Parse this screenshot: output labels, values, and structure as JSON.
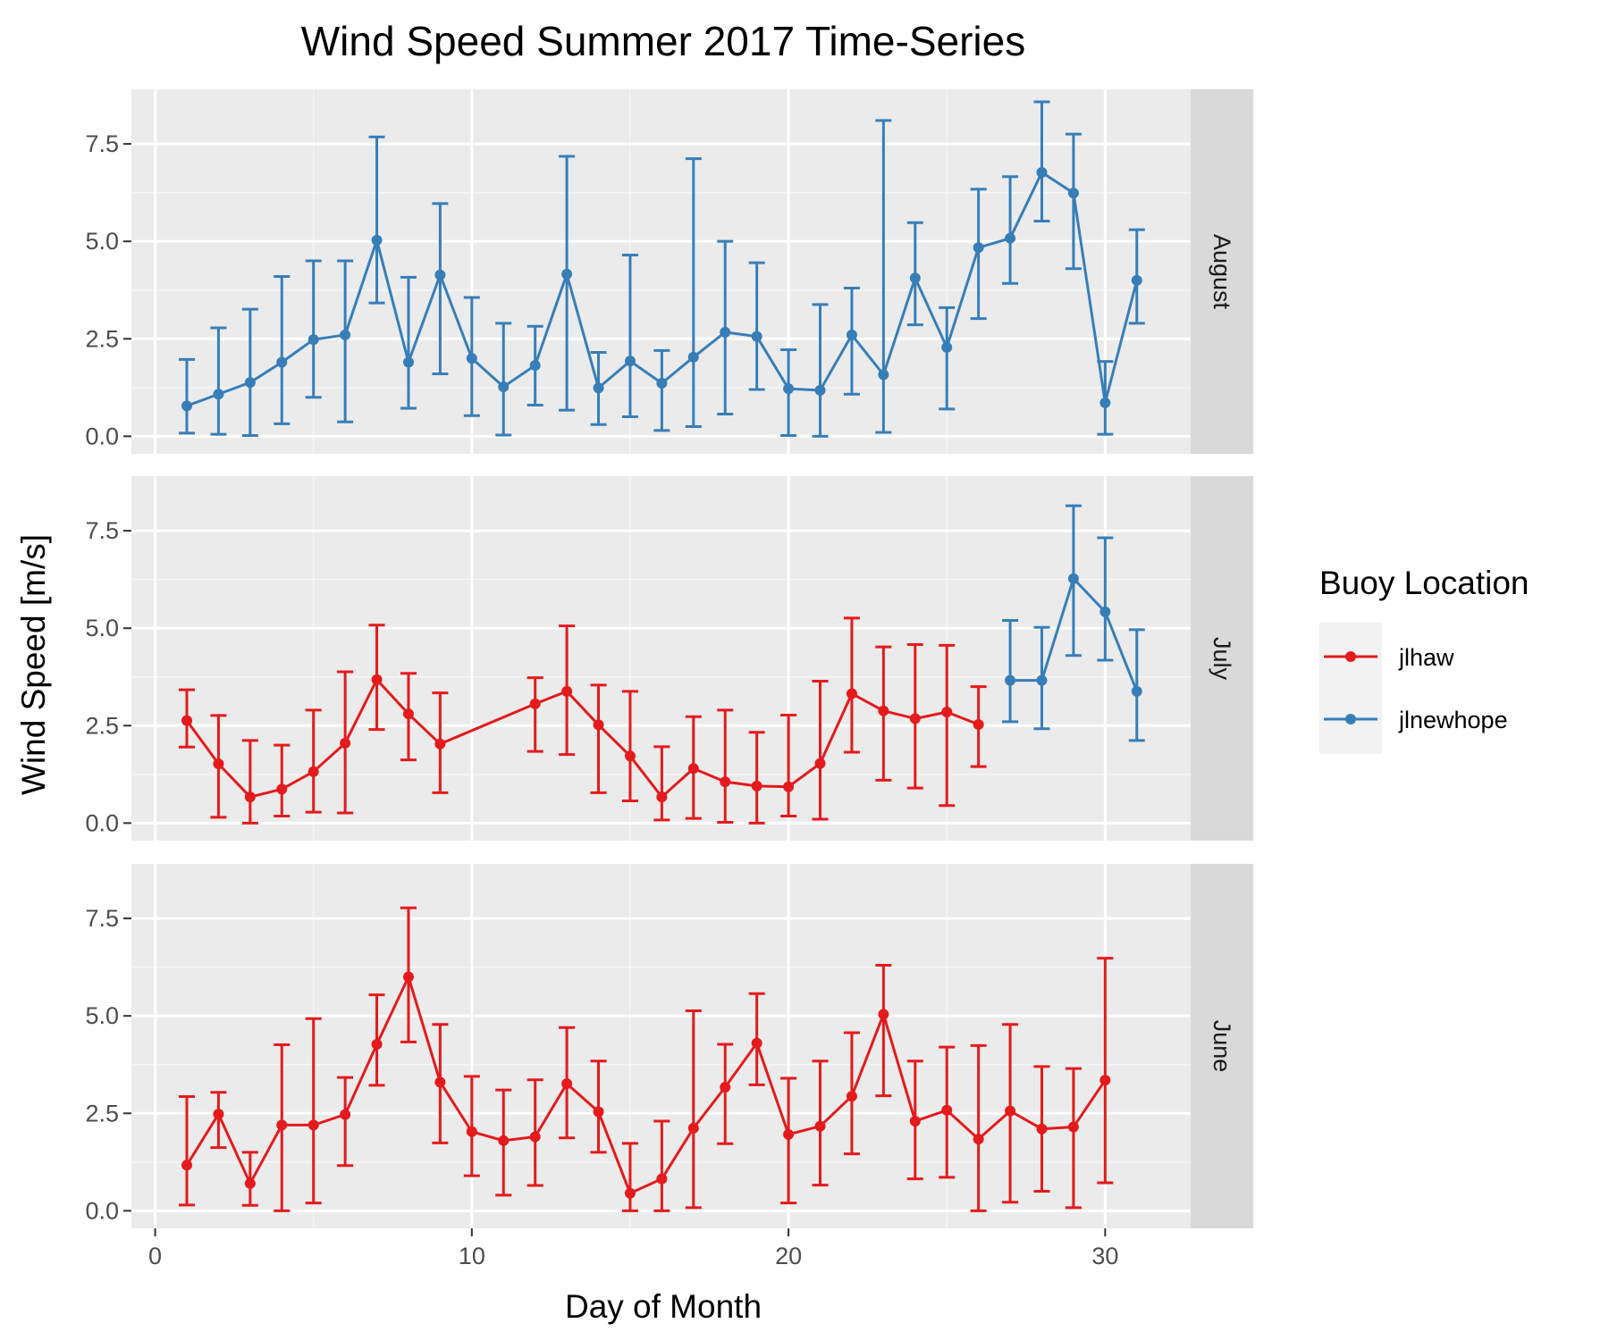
{
  "chart_data": {
    "type": "line",
    "title": "Wind Speed Summer 2017 Time-Series",
    "xlabel": "Day of Month",
    "ylabel": "Wind Speed [m/s]",
    "xlim": [
      -0.75,
      32.7
    ],
    "ylim": [
      -0.45,
      8.9
    ],
    "x_ticks": [
      0,
      10,
      20,
      30
    ],
    "x_tick_labels": [
      "0",
      "10",
      "20",
      "30"
    ],
    "y_ticks": [
      0,
      2.5,
      5,
      7.5
    ],
    "y_tick_labels": [
      "0.0",
      "2.5",
      "5.0",
      "7.5"
    ],
    "grid": true,
    "legend": {
      "title": "Buoy Location",
      "position": "right",
      "entries": [
        {
          "name": "jlhaw",
          "color": "#e41a1c"
        },
        {
          "name": "jlnewhope",
          "color": "#377eb8"
        }
      ]
    },
    "panels": [
      {
        "label": "August",
        "series": [
          {
            "name": "jlnewhope",
            "color": "#377eb8",
            "points": [
              {
                "x": 1,
                "y": 0.78,
                "lo": 0.08,
                "hi": 1.97
              },
              {
                "x": 2,
                "y": 1.08,
                "lo": 0.05,
                "hi": 2.78
              },
              {
                "x": 3,
                "y": 1.38,
                "lo": 0.02,
                "hi": 3.26
              },
              {
                "x": 4,
                "y": 1.9,
                "lo": 0.32,
                "hi": 4.1
              },
              {
                "x": 5,
                "y": 2.48,
                "lo": 1.0,
                "hi": 4.5
              },
              {
                "x": 6,
                "y": 2.6,
                "lo": 0.37,
                "hi": 4.5
              },
              {
                "x": 7,
                "y": 5.03,
                "lo": 3.42,
                "hi": 7.68
              },
              {
                "x": 8,
                "y": 1.9,
                "lo": 0.72,
                "hi": 4.08
              },
              {
                "x": 9,
                "y": 4.14,
                "lo": 1.6,
                "hi": 5.97
              },
              {
                "x": 10,
                "y": 2.0,
                "lo": 0.53,
                "hi": 3.56
              },
              {
                "x": 11,
                "y": 1.27,
                "lo": 0.03,
                "hi": 2.9
              },
              {
                "x": 12,
                "y": 1.82,
                "lo": 0.8,
                "hi": 2.82
              },
              {
                "x": 13,
                "y": 4.16,
                "lo": 0.67,
                "hi": 7.18
              },
              {
                "x": 14,
                "y": 1.24,
                "lo": 0.3,
                "hi": 2.15
              },
              {
                "x": 15,
                "y": 1.93,
                "lo": 0.5,
                "hi": 4.65
              },
              {
                "x": 16,
                "y": 1.36,
                "lo": 0.15,
                "hi": 2.2
              },
              {
                "x": 17,
                "y": 2.03,
                "lo": 0.25,
                "hi": 7.12
              },
              {
                "x": 18,
                "y": 2.67,
                "lo": 0.57,
                "hi": 5.0
              },
              {
                "x": 19,
                "y": 2.56,
                "lo": 1.2,
                "hi": 4.45
              },
              {
                "x": 20,
                "y": 1.22,
                "lo": 0.02,
                "hi": 2.22
              },
              {
                "x": 21,
                "y": 1.18,
                "lo": 0.0,
                "hi": 3.38
              },
              {
                "x": 22,
                "y": 2.6,
                "lo": 1.08,
                "hi": 3.8
              },
              {
                "x": 23,
                "y": 1.58,
                "lo": 0.1,
                "hi": 8.1
              },
              {
                "x": 24,
                "y": 4.06,
                "lo": 2.86,
                "hi": 5.48
              },
              {
                "x": 25,
                "y": 2.28,
                "lo": 0.7,
                "hi": 3.3
              },
              {
                "x": 26,
                "y": 4.84,
                "lo": 3.02,
                "hi": 6.34
              },
              {
                "x": 27,
                "y": 5.08,
                "lo": 3.92,
                "hi": 6.66
              },
              {
                "x": 28,
                "y": 6.77,
                "lo": 5.52,
                "hi": 8.58
              },
              {
                "x": 29,
                "y": 6.24,
                "lo": 4.3,
                "hi": 7.75
              },
              {
                "x": 30,
                "y": 0.86,
                "lo": 0.05,
                "hi": 1.92
              },
              {
                "x": 31,
                "y": 4.0,
                "lo": 2.9,
                "hi": 5.3
              }
            ]
          }
        ]
      },
      {
        "label": "July",
        "series": [
          {
            "name": "jlhaw",
            "color": "#e41a1c",
            "points": [
              {
                "x": 1,
                "y": 2.63,
                "lo": 1.95,
                "hi": 3.42
              },
              {
                "x": 2,
                "y": 1.52,
                "lo": 0.15,
                "hi": 2.76
              },
              {
                "x": 3,
                "y": 0.67,
                "lo": 0.0,
                "hi": 2.12
              },
              {
                "x": 4,
                "y": 0.87,
                "lo": 0.18,
                "hi": 2.0
              },
              {
                "x": 5,
                "y": 1.32,
                "lo": 0.28,
                "hi": 2.9
              },
              {
                "x": 6,
                "y": 2.05,
                "lo": 0.26,
                "hi": 3.88
              },
              {
                "x": 7,
                "y": 3.68,
                "lo": 2.4,
                "hi": 5.08
              },
              {
                "x": 8,
                "y": 2.8,
                "lo": 1.62,
                "hi": 3.84
              },
              {
                "x": 9,
                "y": 2.03,
                "lo": 0.78,
                "hi": 3.34
              },
              {
                "x": 12,
                "y": 3.06,
                "lo": 1.84,
                "hi": 3.73
              },
              {
                "x": 13,
                "y": 3.38,
                "lo": 1.76,
                "hi": 5.06
              },
              {
                "x": 14,
                "y": 2.52,
                "lo": 0.78,
                "hi": 3.54
              },
              {
                "x": 15,
                "y": 1.72,
                "lo": 0.57,
                "hi": 3.38
              },
              {
                "x": 16,
                "y": 0.67,
                "lo": 0.08,
                "hi": 1.96
              },
              {
                "x": 17,
                "y": 1.4,
                "lo": 0.12,
                "hi": 2.73
              },
              {
                "x": 18,
                "y": 1.06,
                "lo": 0.02,
                "hi": 2.9
              },
              {
                "x": 19,
                "y": 0.95,
                "lo": 0.0,
                "hi": 2.33
              },
              {
                "x": 20,
                "y": 0.93,
                "lo": 0.18,
                "hi": 2.77
              },
              {
                "x": 21,
                "y": 1.53,
                "lo": 0.1,
                "hi": 3.64
              },
              {
                "x": 22,
                "y": 3.32,
                "lo": 1.82,
                "hi": 5.26
              },
              {
                "x": 23,
                "y": 2.88,
                "lo": 1.1,
                "hi": 4.52
              },
              {
                "x": 24,
                "y": 2.68,
                "lo": 0.9,
                "hi": 4.58
              },
              {
                "x": 25,
                "y": 2.85,
                "lo": 0.45,
                "hi": 4.56
              },
              {
                "x": 26,
                "y": 2.53,
                "lo": 1.45,
                "hi": 3.5
              }
            ]
          },
          {
            "name": "jlnewhope",
            "color": "#377eb8",
            "points": [
              {
                "x": 27,
                "y": 3.66,
                "lo": 2.6,
                "hi": 5.2
              },
              {
                "x": 28,
                "y": 3.66,
                "lo": 2.42,
                "hi": 5.02
              },
              {
                "x": 29,
                "y": 6.27,
                "lo": 4.3,
                "hi": 8.14
              },
              {
                "x": 30,
                "y": 5.42,
                "lo": 4.18,
                "hi": 7.32
              },
              {
                "x": 31,
                "y": 3.38,
                "lo": 2.12,
                "hi": 4.96
              }
            ]
          }
        ]
      },
      {
        "label": "June",
        "series": [
          {
            "name": "jlhaw",
            "color": "#e41a1c",
            "points": [
              {
                "x": 1,
                "y": 1.17,
                "lo": 0.15,
                "hi": 2.93
              },
              {
                "x": 2,
                "y": 2.48,
                "lo": 1.62,
                "hi": 3.04
              },
              {
                "x": 3,
                "y": 0.7,
                "lo": 0.14,
                "hi": 1.5
              },
              {
                "x": 4,
                "y": 2.2,
                "lo": 0.0,
                "hi": 4.26
              },
              {
                "x": 5,
                "y": 2.2,
                "lo": 0.2,
                "hi": 4.93
              },
              {
                "x": 6,
                "y": 2.47,
                "lo": 1.16,
                "hi": 3.42
              },
              {
                "x": 7,
                "y": 4.27,
                "lo": 3.22,
                "hi": 5.54
              },
              {
                "x": 8,
                "y": 6.0,
                "lo": 4.33,
                "hi": 7.77
              },
              {
                "x": 9,
                "y": 3.3,
                "lo": 1.74,
                "hi": 4.78
              },
              {
                "x": 10,
                "y": 2.03,
                "lo": 0.9,
                "hi": 3.45
              },
              {
                "x": 11,
                "y": 1.8,
                "lo": 0.4,
                "hi": 3.1
              },
              {
                "x": 12,
                "y": 1.9,
                "lo": 0.65,
                "hi": 3.36
              },
              {
                "x": 13,
                "y": 3.26,
                "lo": 1.87,
                "hi": 4.7
              },
              {
                "x": 14,
                "y": 2.54,
                "lo": 1.5,
                "hi": 3.84
              },
              {
                "x": 15,
                "y": 0.45,
                "lo": 0.0,
                "hi": 1.73
              },
              {
                "x": 16,
                "y": 0.82,
                "lo": 0.0,
                "hi": 2.3
              },
              {
                "x": 17,
                "y": 2.12,
                "lo": 0.08,
                "hi": 5.13
              },
              {
                "x": 18,
                "y": 3.17,
                "lo": 1.72,
                "hi": 4.27
              },
              {
                "x": 19,
                "y": 4.3,
                "lo": 3.23,
                "hi": 5.57
              },
              {
                "x": 20,
                "y": 1.96,
                "lo": 0.2,
                "hi": 3.4
              },
              {
                "x": 21,
                "y": 2.17,
                "lo": 0.66,
                "hi": 3.84
              },
              {
                "x": 22,
                "y": 2.94,
                "lo": 1.46,
                "hi": 4.57
              },
              {
                "x": 23,
                "y": 5.04,
                "lo": 2.95,
                "hi": 6.3
              },
              {
                "x": 24,
                "y": 2.3,
                "lo": 0.82,
                "hi": 3.84
              },
              {
                "x": 25,
                "y": 2.58,
                "lo": 0.86,
                "hi": 4.2
              },
              {
                "x": 26,
                "y": 1.84,
                "lo": 0.0,
                "hi": 4.24
              },
              {
                "x": 27,
                "y": 2.56,
                "lo": 0.22,
                "hi": 4.78
              },
              {
                "x": 28,
                "y": 2.1,
                "lo": 0.5,
                "hi": 3.7
              },
              {
                "x": 29,
                "y": 2.15,
                "lo": 0.08,
                "hi": 3.65
              },
              {
                "x": 30,
                "y": 3.35,
                "lo": 0.72,
                "hi": 6.48
              }
            ]
          }
        ]
      }
    ]
  }
}
